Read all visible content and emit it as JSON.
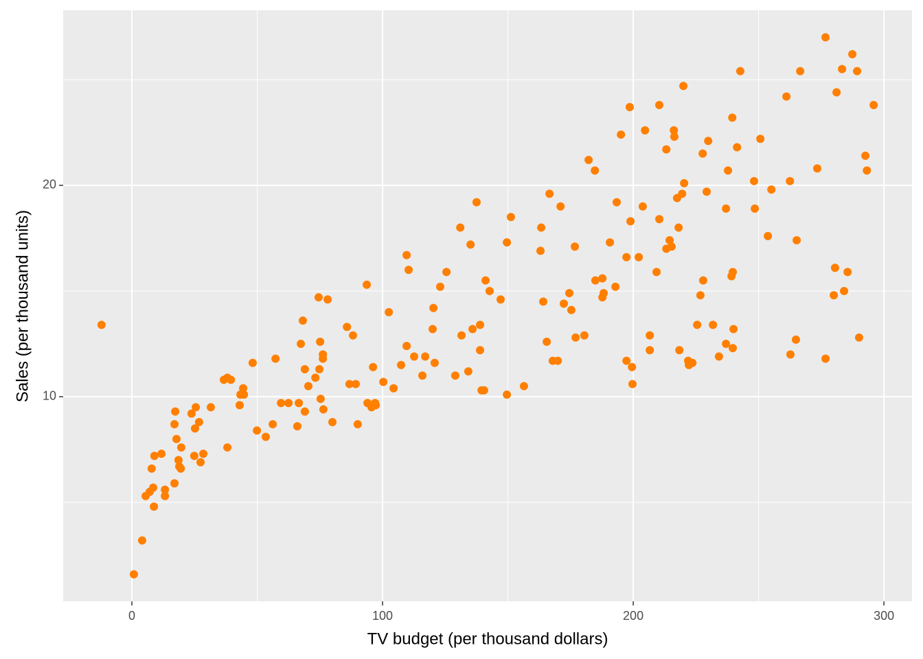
{
  "chart_data": {
    "type": "scatter",
    "x_label": "TV budget (per thousand dollars)",
    "y_label": "Sales (per thousand units)",
    "color": "#ff7f00",
    "grid": true,
    "xlim": [
      -27.4,
      311.2
    ],
    "ylim": [
      0.32,
      28.28
    ],
    "xticks": [
      0,
      100,
      200,
      300
    ],
    "yticks": [
      10,
      20
    ],
    "x": [
      -12.1,
      0.8,
      4.1,
      5.5,
      7.1,
      8.5,
      8.8,
      7.9,
      9.0,
      11.8,
      13.2,
      13.2,
      17.0,
      17.0,
      17.3,
      17.8,
      18.6,
      18.9,
      19.5,
      19.7,
      23.8,
      24.9,
      25.2,
      25.5,
      26.8,
      27.4,
      28.5,
      31.5,
      36.7,
      38.1,
      39.5,
      38.1,
      43.0,
      43.3,
      44.4,
      44.7,
      48.2,
      49.9,
      53.4,
      56.2,
      57.3,
      59.5,
      62.5,
      66.0,
      66.6,
      67.4,
      68.2,
      69.0,
      69.0,
      70.4,
      73.2,
      74.5,
      74.8,
      75.1,
      75.3,
      76.2,
      76.2,
      76.4,
      78.1,
      80.0,
      85.8,
      86.8,
      88.2,
      89.3,
      90.1,
      93.7,
      94.0,
      95.6,
      96.2,
      97.0,
      97.3,
      100.3,
      102.5,
      104.4,
      107.4,
      109.6,
      109.6,
      110.4,
      112.6,
      115.9,
      117.0,
      120.0,
      120.3,
      120.8,
      123.0,
      125.5,
      129.0,
      131.0,
      131.5,
      134.2,
      135.1,
      135.9,
      137.5,
      138.9,
      138.9,
      139.5,
      140.5,
      141.1,
      142.7,
      147.1,
      149.6,
      149.6,
      151.2,
      156.4,
      163.0,
      163.3,
      164.1,
      165.5,
      166.6,
      167.9,
      169.9,
      171.0,
      172.3,
      174.5,
      175.3,
      176.7,
      177.0,
      180.5,
      182.2,
      184.7,
      184.9,
      187.7,
      187.7,
      188.2,
      190.7,
      192.9,
      193.4,
      195.1,
      197.3,
      197.3,
      198.6,
      198.9,
      199.5,
      199.7,
      202.2,
      203.8,
      204.7,
      206.6,
      206.6,
      209.3,
      210.4,
      210.4,
      213.2,
      213.2,
      214.5,
      215.3,
      216.2,
      216.4,
      217.5,
      218.1,
      218.4,
      219.5,
      220.0,
      220.3,
      221.9,
      222.2,
      223.6,
      225.5,
      226.8,
      227.7,
      227.9,
      229.3,
      229.9,
      231.8,
      234.2,
      237.0,
      237.0,
      237.8,
      239.2,
      239.5,
      239.7,
      239.7,
      240.0,
      241.4,
      242.7,
      248.2,
      248.5,
      250.7,
      253.7,
      255.1,
      261.1,
      262.5,
      262.7,
      264.9,
      265.2,
      266.6,
      273.4,
      276.7,
      276.7,
      280.0,
      280.5,
      281.1,
      283.3,
      284.1,
      285.5,
      287.4,
      289.3,
      290.1,
      292.6,
      293.2,
      295.9
    ],
    "values": [
      13.4,
      1.6,
      3.2,
      5.3,
      5.5,
      5.7,
      4.8,
      6.6,
      7.2,
      7.3,
      5.6,
      5.3,
      5.9,
      8.7,
      9.3,
      8.0,
      7.0,
      6.7,
      6.6,
      7.6,
      9.2,
      7.2,
      8.5,
      9.5,
      8.8,
      6.9,
      7.3,
      9.5,
      10.8,
      10.9,
      10.8,
      7.6,
      9.6,
      10.1,
      10.4,
      10.1,
      11.6,
      8.4,
      8.1,
      8.7,
      11.8,
      9.7,
      9.7,
      8.6,
      9.7,
      12.5,
      13.6,
      11.3,
      9.3,
      10.5,
      10.9,
      14.7,
      11.3,
      12.6,
      9.9,
      12.0,
      11.8,
      9.4,
      14.6,
      8.8,
      13.3,
      10.6,
      12.9,
      10.6,
      8.7,
      15.3,
      9.7,
      9.5,
      11.4,
      9.7,
      9.6,
      10.7,
      14.0,
      10.4,
      11.5,
      16.7,
      12.4,
      16.0,
      11.9,
      11.0,
      11.9,
      13.2,
      14.2,
      11.6,
      15.2,
      15.9,
      11.0,
      18.0,
      12.9,
      11.2,
      17.2,
      13.2,
      19.2,
      13.4,
      12.2,
      10.3,
      10.3,
      15.5,
      15.0,
      14.6,
      17.3,
      10.1,
      18.5,
      10.5,
      16.9,
      18.0,
      14.5,
      12.6,
      19.6,
      11.7,
      11.7,
      19.0,
      14.4,
      14.9,
      14.1,
      17.1,
      12.8,
      12.9,
      21.2,
      20.7,
      15.5,
      15.6,
      14.7,
      14.9,
      17.3,
      15.2,
      19.2,
      22.4,
      11.7,
      16.6,
      23.7,
      18.3,
      11.4,
      10.6,
      16.6,
      19.0,
      22.6,
      12.9,
      12.2,
      15.9,
      23.8,
      18.4,
      21.7,
      17.0,
      17.4,
      17.1,
      22.6,
      22.3,
      19.4,
      18.0,
      12.2,
      19.6,
      24.7,
      20.1,
      11.7,
      11.5,
      11.6,
      13.4,
      14.8,
      21.5,
      15.5,
      19.7,
      22.1,
      13.4,
      11.9,
      18.9,
      12.5,
      20.7,
      15.7,
      23.2,
      12.3,
      15.9,
      13.2,
      21.8,
      25.4,
      20.2,
      18.9,
      22.2,
      17.6,
      19.8,
      24.2,
      20.2,
      12.0,
      12.7,
      17.4,
      25.4,
      20.8,
      11.8,
      27.0,
      14.8,
      16.1,
      24.4,
      25.5,
      15.0,
      15.9,
      26.2,
      25.4,
      12.8,
      21.4,
      20.7,
      23.8
    ]
  }
}
